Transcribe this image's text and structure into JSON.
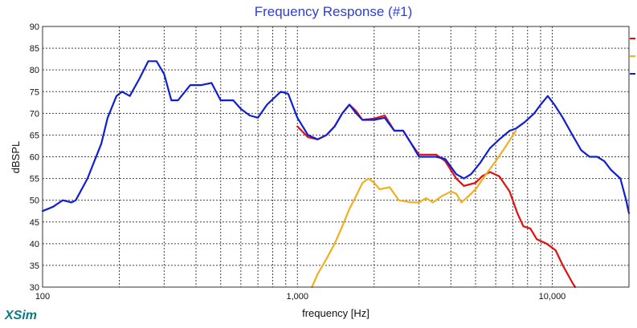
{
  "app": {
    "brand": "XSim"
  },
  "chart_data": {
    "type": "line",
    "title": "Frequency Response (#1)",
    "xlabel": "frequency [Hz]",
    "ylabel": "dBSPL",
    "xscale": "log",
    "xlim": [
      100,
      20000
    ],
    "ylim": [
      30,
      90
    ],
    "x_tick_labels": [
      {
        "value": 100,
        "label": "100"
      },
      {
        "value": 1000,
        "label": "1,000"
      },
      {
        "value": 10000,
        "label": "10,000"
      }
    ],
    "y_ticks": [
      30,
      35,
      40,
      45,
      50,
      55,
      60,
      65,
      70,
      75,
      80,
      85,
      90
    ],
    "grid": true,
    "legend": "right edge color markers (no text)",
    "series": [
      {
        "color": "#e01010",
        "points": [
          [
            1000,
            67
          ],
          [
            1100,
            64.5
          ],
          [
            1200,
            64
          ],
          [
            1300,
            65
          ],
          [
            1400,
            67
          ],
          [
            1500,
            70
          ],
          [
            1600,
            72
          ],
          [
            1700,
            70.5
          ],
          [
            1800,
            68.5
          ],
          [
            2000,
            68.8
          ],
          [
            2200,
            69.5
          ],
          [
            2400,
            66
          ],
          [
            2600,
            66
          ],
          [
            2800,
            63
          ],
          [
            3000,
            60.5
          ],
          [
            3500,
            60.5
          ],
          [
            3800,
            59
          ],
          [
            4200,
            55
          ],
          [
            4500,
            53.3
          ],
          [
            5000,
            54
          ],
          [
            5300,
            55.5
          ],
          [
            5700,
            56.5
          ],
          [
            6200,
            55.5
          ],
          [
            6800,
            52
          ],
          [
            7300,
            47
          ],
          [
            7700,
            44
          ],
          [
            8200,
            43.5
          ],
          [
            8700,
            41
          ],
          [
            9500,
            40
          ],
          [
            10300,
            38.5
          ],
          [
            11000,
            35
          ],
          [
            12000,
            31
          ],
          [
            12300,
            30
          ]
        ]
      },
      {
        "color": "#f0b020",
        "points": [
          [
            1140,
            30
          ],
          [
            1200,
            33
          ],
          [
            1300,
            36.5
          ],
          [
            1400,
            40
          ],
          [
            1500,
            44
          ],
          [
            1600,
            48
          ],
          [
            1700,
            51
          ],
          [
            1800,
            54
          ],
          [
            1900,
            55
          ],
          [
            2000,
            54
          ],
          [
            2100,
            52.5
          ],
          [
            2300,
            53
          ],
          [
            2500,
            50
          ],
          [
            2800,
            49.5
          ],
          [
            3000,
            49.5
          ],
          [
            3200,
            50.5
          ],
          [
            3400,
            49.5
          ],
          [
            3700,
            51
          ],
          [
            4000,
            52
          ],
          [
            4200,
            51.5
          ],
          [
            4400,
            49.5
          ],
          [
            4700,
            51
          ],
          [
            5000,
            52.5
          ],
          [
            5500,
            56
          ],
          [
            6000,
            59
          ],
          [
            6500,
            62
          ],
          [
            7200,
            66
          ]
        ]
      },
      {
        "color": "#1020d0",
        "points": [
          [
            100,
            47.5
          ],
          [
            110,
            48.5
          ],
          [
            120,
            50
          ],
          [
            130,
            49.5
          ],
          [
            135,
            50
          ],
          [
            150,
            55
          ],
          [
            170,
            63
          ],
          [
            180,
            69
          ],
          [
            195,
            74
          ],
          [
            205,
            75
          ],
          [
            220,
            74
          ],
          [
            240,
            78
          ],
          [
            260,
            82
          ],
          [
            280,
            82
          ],
          [
            300,
            79
          ],
          [
            320,
            73
          ],
          [
            340,
            73
          ],
          [
            380,
            76.5
          ],
          [
            420,
            76.5
          ],
          [
            460,
            77
          ],
          [
            500,
            73
          ],
          [
            560,
            73
          ],
          [
            600,
            71
          ],
          [
            650,
            69.5
          ],
          [
            700,
            69
          ],
          [
            760,
            72
          ],
          [
            860,
            75
          ],
          [
            920,
            74.5
          ],
          [
            1000,
            69
          ],
          [
            1100,
            65
          ],
          [
            1200,
            64
          ],
          [
            1300,
            65
          ],
          [
            1400,
            67
          ],
          [
            1500,
            70
          ],
          [
            1600,
            72
          ],
          [
            1700,
            70
          ],
          [
            1800,
            68.5
          ],
          [
            2000,
            68.5
          ],
          [
            2200,
            69
          ],
          [
            2400,
            66
          ],
          [
            2600,
            66
          ],
          [
            2800,
            63
          ],
          [
            3000,
            60
          ],
          [
            3500,
            60
          ],
          [
            3800,
            59.5
          ],
          [
            4200,
            56
          ],
          [
            4500,
            55
          ],
          [
            4800,
            56
          ],
          [
            5200,
            58.5
          ],
          [
            5700,
            62
          ],
          [
            6200,
            64
          ],
          [
            6800,
            66
          ],
          [
            7200,
            66.5
          ],
          [
            7800,
            68
          ],
          [
            8500,
            70
          ],
          [
            9000,
            72
          ],
          [
            9600,
            74
          ],
          [
            10200,
            72
          ],
          [
            11000,
            69
          ],
          [
            12000,
            65
          ],
          [
            13000,
            61.5
          ],
          [
            14000,
            60
          ],
          [
            15000,
            60
          ],
          [
            16000,
            59
          ],
          [
            17000,
            57
          ],
          [
            18500,
            55
          ],
          [
            19500,
            50
          ],
          [
            20000,
            47
          ]
        ]
      }
    ]
  }
}
